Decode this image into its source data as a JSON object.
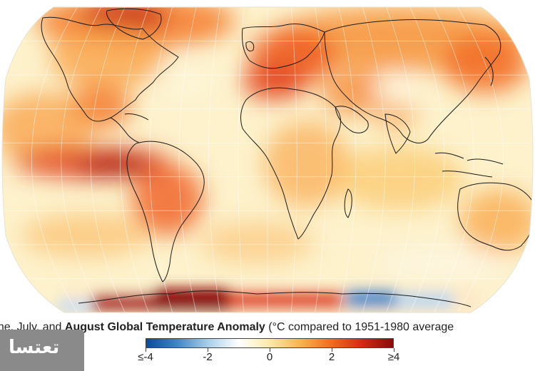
{
  "caption": {
    "prefix": "une, July, and ",
    "bold": "August Global Temperature Anomaly",
    "suffix": " (°C compared to 1951-1980 average"
  },
  "legend": {
    "min": -4,
    "max": 4,
    "labels": [
      "≤-4",
      "-2",
      "0",
      "2",
      "≥4"
    ],
    "colors": [
      "#0a4a9c",
      "#3d86c8",
      "#a9cfe9",
      "#ffffff",
      "#fde9a8",
      "#fbb24a",
      "#f36b1c",
      "#d42a10",
      "#8a0a0a"
    ]
  },
  "map": {
    "ocean_color": "#fdf2cc",
    "coastline_color": "#1a1a1a"
  },
  "logo": {
    "text": "تعتسا"
  }
}
